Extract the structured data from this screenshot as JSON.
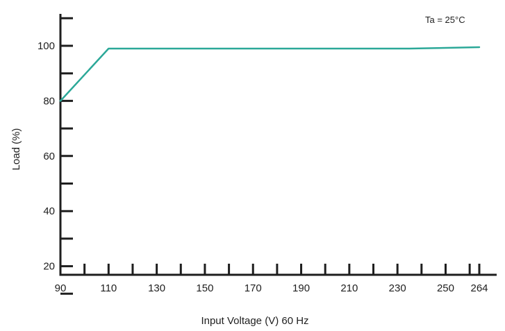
{
  "chart_data": {
    "type": "line",
    "title": "",
    "xlabel": "Input Voltage (V) 60 Hz",
    "ylabel": "Load (%)",
    "annotation": "Ta = 25°C",
    "xlim": [
      90,
      264
    ],
    "ylim": [
      0,
      110
    ],
    "x_tick_labels": [
      "90",
      "110",
      "130",
      "150",
      "170",
      "190",
      "210",
      "230",
      "250",
      "264"
    ],
    "x_tick_values": [
      90,
      110,
      130,
      150,
      170,
      190,
      210,
      230,
      250,
      264
    ],
    "x_minor_ticks": [
      100,
      120,
      140,
      160,
      180,
      200,
      220,
      240,
      260
    ],
    "y_tick_labels": [
      "20",
      "40",
      "60",
      "80",
      "100"
    ],
    "y_tick_values": [
      20,
      40,
      60,
      80,
      100
    ],
    "y_minor_ticks": [
      10,
      30,
      50,
      70,
      90
    ],
    "grid": false,
    "legend": "none",
    "series": [
      {
        "color": "#2ba898",
        "x": [
          90,
          110,
          235,
          264
        ],
        "y": [
          80,
          99,
          99,
          99.5
        ]
      }
    ],
    "colors": {
      "axis": "#1e1e1e",
      "line": "#2ba898",
      "text": "#1e1e1e"
    }
  }
}
